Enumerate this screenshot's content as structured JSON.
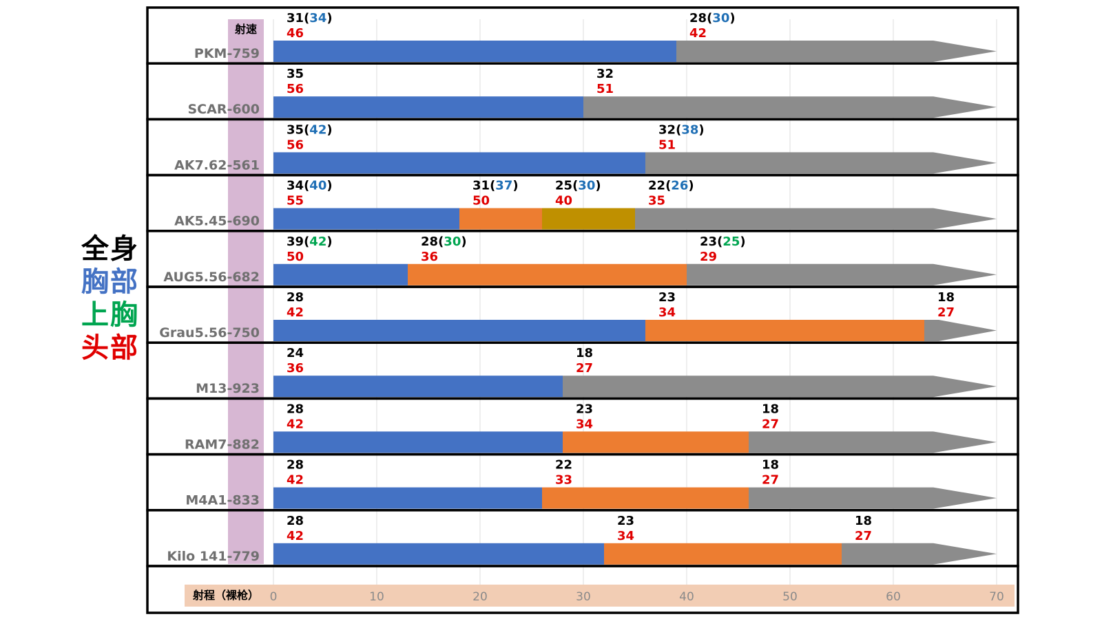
{
  "legend": [
    {
      "text": "全身",
      "color": "#000000"
    },
    {
      "text": "胸部",
      "color": "#4472C4"
    },
    {
      "text": "上胸",
      "color": "#00A550"
    },
    {
      "text": "头部",
      "color": "#E00000"
    }
  ],
  "colors": {
    "segments": [
      "#4472C4",
      "#ED7D31",
      "#BF9000"
    ],
    "tail": "#8C8C8C",
    "chest": "#1F6FB5",
    "upper": "#00A550",
    "head": "#E00000",
    "body": "#000000",
    "label_band": "#D7B7D3",
    "axis_band": "#F2CDB4",
    "rowname": "#707070"
  },
  "chart_data": {
    "type": "bar",
    "column_header": "射速",
    "xlabel": "射程（裸枪）",
    "xlim": [
      0,
      70
    ],
    "xticks": [
      0,
      10,
      20,
      30,
      40,
      50,
      60,
      70
    ],
    "grid": true,
    "rows": [
      {
        "name": "PKM",
        "rate": "-759",
        "tail_end": 70,
        "segments": [
          {
            "end": 39
          }
        ],
        "labels": [
          {
            "x": 0,
            "body": "31",
            "chest": "34",
            "head": "46"
          },
          {
            "x": 39,
            "body": "28",
            "chest": "30",
            "head": "42"
          }
        ]
      },
      {
        "name": "SCAR",
        "rate": "-600",
        "tail_end": 70,
        "segments": [
          {
            "end": 30
          }
        ],
        "labels": [
          {
            "x": 0,
            "body": "35",
            "head": "56"
          },
          {
            "x": 30,
            "body": "32",
            "head": "51"
          }
        ]
      },
      {
        "name": "AK7.62",
        "rate": "-561",
        "tail_end": 70,
        "segments": [
          {
            "end": 36
          }
        ],
        "labels": [
          {
            "x": 0,
            "body": "35",
            "chest": "42",
            "head": "56"
          },
          {
            "x": 36,
            "body": "32",
            "chest": "38",
            "head": "51"
          }
        ]
      },
      {
        "name": "AK5.45",
        "rate": "-690",
        "tail_end": 70,
        "segments": [
          {
            "end": 18
          },
          {
            "end": 26
          },
          {
            "end": 35
          }
        ],
        "labels": [
          {
            "x": 0,
            "body": "34",
            "chest": "40",
            "head": "55"
          },
          {
            "x": 18,
            "body": "31",
            "chest": "37",
            "head": "50"
          },
          {
            "x": 26,
            "body": "25",
            "chest": "30",
            "head": "40"
          },
          {
            "x": 35,
            "body": "22",
            "chest": "26",
            "head": "35"
          }
        ]
      },
      {
        "name": "AUG5.56",
        "rate": "-682",
        "tail_end": 70,
        "segments": [
          {
            "end": 13
          },
          {
            "end": 40
          }
        ],
        "labels": [
          {
            "x": 0,
            "body": "39",
            "upper": "42",
            "head": "50"
          },
          {
            "x": 13,
            "body": "28",
            "upper": "30",
            "head": "36"
          },
          {
            "x": 40,
            "body": "23",
            "upper": "25",
            "head": "29"
          }
        ]
      },
      {
        "name": "Grau5.56",
        "rate": "-750",
        "tail_end": 70,
        "segments": [
          {
            "end": 36
          },
          {
            "end": 63
          }
        ],
        "labels": [
          {
            "x": 0,
            "body": "28",
            "head": "42"
          },
          {
            "x": 36,
            "body": "23",
            "head": "34"
          },
          {
            "x": 63,
            "body": "18",
            "head": "27"
          }
        ]
      },
      {
        "name": "M13",
        "rate": "-923",
        "tail_end": 70,
        "segments": [
          {
            "end": 28
          }
        ],
        "labels": [
          {
            "x": 0,
            "body": "24",
            "head": "36"
          },
          {
            "x": 28,
            "body": "18",
            "head": "27"
          }
        ]
      },
      {
        "name": "RAM7",
        "rate": "-882",
        "tail_end": 70,
        "segments": [
          {
            "end": 28
          },
          {
            "end": 46
          }
        ],
        "labels": [
          {
            "x": 0,
            "body": "28",
            "head": "42"
          },
          {
            "x": 28,
            "body": "23",
            "head": "34"
          },
          {
            "x": 46,
            "body": "18",
            "head": "27"
          }
        ]
      },
      {
        "name": "M4A1",
        "rate": "-833",
        "tail_end": 70,
        "segments": [
          {
            "end": 26
          },
          {
            "end": 46
          }
        ],
        "labels": [
          {
            "x": 0,
            "body": "28",
            "head": "42"
          },
          {
            "x": 26,
            "body": "22",
            "head": "33"
          },
          {
            "x": 46,
            "body": "18",
            "head": "27"
          }
        ]
      },
      {
        "name": "Kilo 141",
        "rate": "-779",
        "tail_end": 70,
        "segments": [
          {
            "end": 32
          },
          {
            "end": 55
          }
        ],
        "labels": [
          {
            "x": 0,
            "body": "28",
            "head": "42"
          },
          {
            "x": 32,
            "body": "23",
            "head": "34"
          },
          {
            "x": 55,
            "body": "18",
            "head": "27"
          }
        ]
      }
    ]
  }
}
